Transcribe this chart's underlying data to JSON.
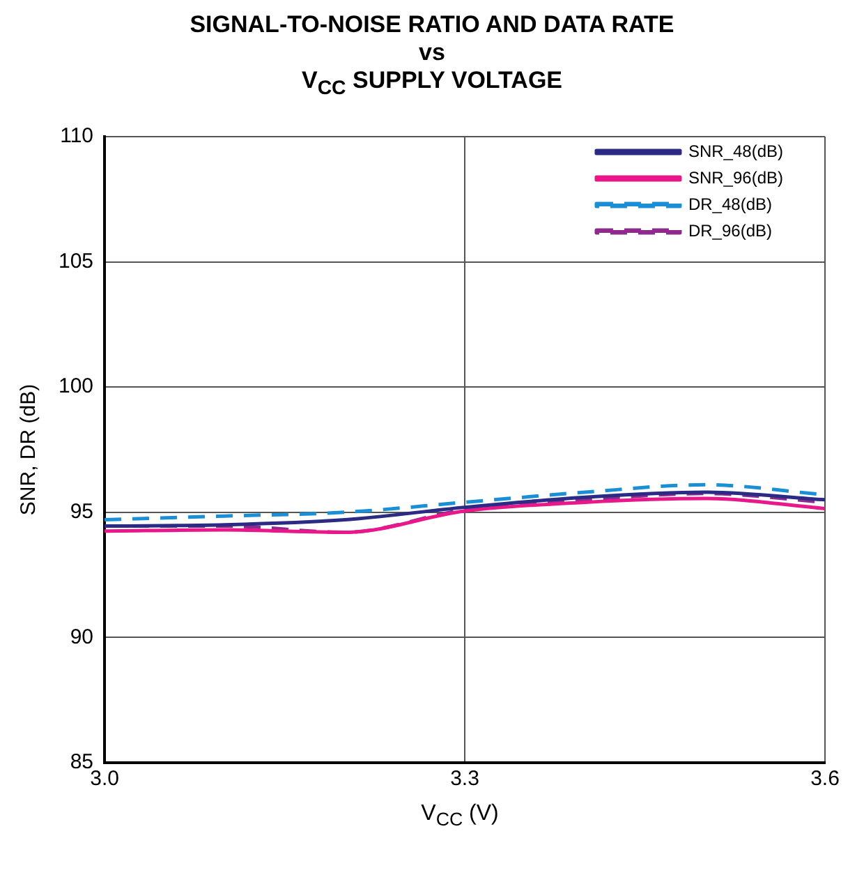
{
  "chart_data": {
    "type": "line",
    "title": "SIGNAL-TO-NOISE RATIO AND DATA RATE",
    "subtitle": "vs",
    "annotations": [
      "V$_{CC}$ SUPPLY VOLTAGE"
    ],
    "xlabel": "V$_{CC}$ (V)",
    "ylabel": "SNR, DR (dB)",
    "xlim": [
      3.0,
      3.6
    ],
    "xticks": [
      {
        "value": 3.0,
        "label": "3.0"
      },
      {
        "value": 3.3,
        "label": "3.3"
      },
      {
        "value": 3.6,
        "label": "3.6"
      }
    ],
    "ylim": [
      85,
      110
    ],
    "yticks": [
      85,
      90,
      95,
      100,
      105,
      110
    ],
    "grid": true,
    "legend": "top right",
    "marker": "none",
    "x": [
      3.0,
      3.1,
      3.2,
      3.3,
      3.4,
      3.5,
      3.6
    ],
    "series": [
      {
        "name": "SNR_48(dB)",
        "color": "#2b2a85",
        "line_style": "solid",
        "values": [
          94.45,
          94.5,
          94.7,
          95.2,
          95.6,
          95.8,
          95.5
        ]
      },
      {
        "name": "SNR_96(dB)",
        "color": "#e8178a",
        "line_style": "solid",
        "values": [
          94.25,
          94.3,
          94.2,
          95.05,
          95.4,
          95.55,
          95.15
        ]
      },
      {
        "name": "DR_48(dB)",
        "color": "#1a8fd6",
        "line_style": "dashed",
        "values": [
          94.7,
          94.85,
          95.0,
          95.4,
          95.8,
          96.1,
          95.7
        ]
      },
      {
        "name": "DR_96(dB)",
        "color": "#8e2a8e",
        "line_style": "dashed",
        "values": [
          94.45,
          94.45,
          94.2,
          95.1,
          95.5,
          95.75,
          95.4
        ]
      }
    ]
  }
}
